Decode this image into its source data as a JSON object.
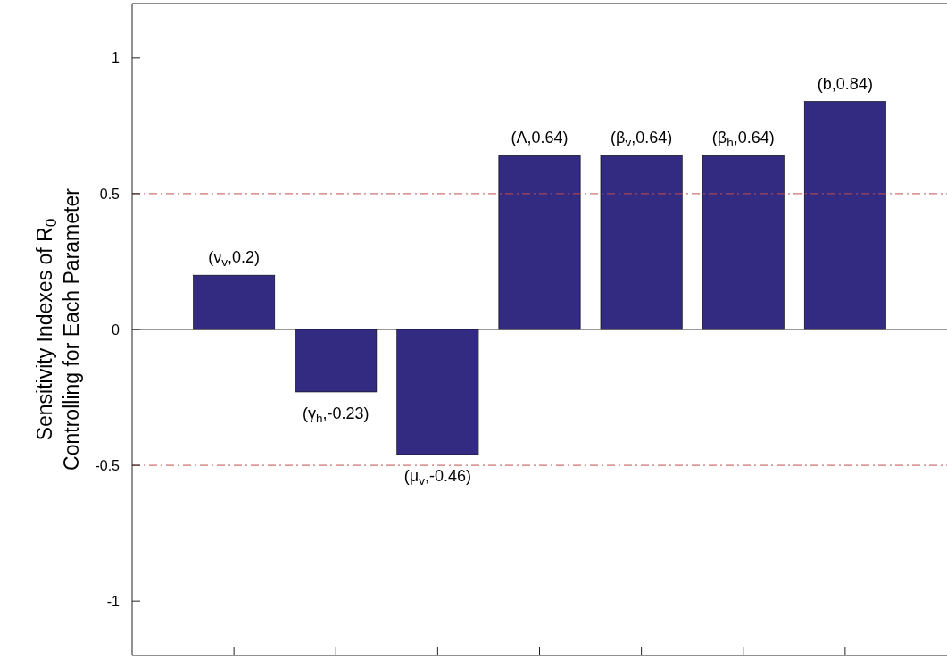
{
  "chart_data": {
    "type": "bar",
    "ylabel": "Sensitivity Indexes of R$_{0}$\nControlling for Each Parameter",
    "categories": [
      null,
      null,
      null,
      null,
      null,
      null,
      null
    ],
    "values": [
      0.2,
      -0.23,
      -0.46,
      0.64,
      0.64,
      0.64,
      0.84
    ],
    "value_labels": [
      "(ν$_{v}$,0.2)",
      "(γ$_{h}$,-0.23)",
      "(μ$_{v}$,-0.46)",
      "(Λ,0.64)",
      "(β$_{v}$,0.64)",
      "(β$_{h}$,0.64)",
      "(b,0.84)"
    ],
    "color": "#332a82",
    "ylim": [
      -1.2,
      1.2
    ],
    "yticks": [
      -1,
      -0.5,
      0,
      0.5,
      1
    ],
    "ref_lines": [
      {
        "axis": "y",
        "value": 0.5,
        "color": "#c0504d",
        "line_style": "dashdot"
      },
      {
        "axis": "y",
        "value": -0.5,
        "color": "#c0504d",
        "line_style": "dashdot"
      }
    ],
    "grid": false
  }
}
